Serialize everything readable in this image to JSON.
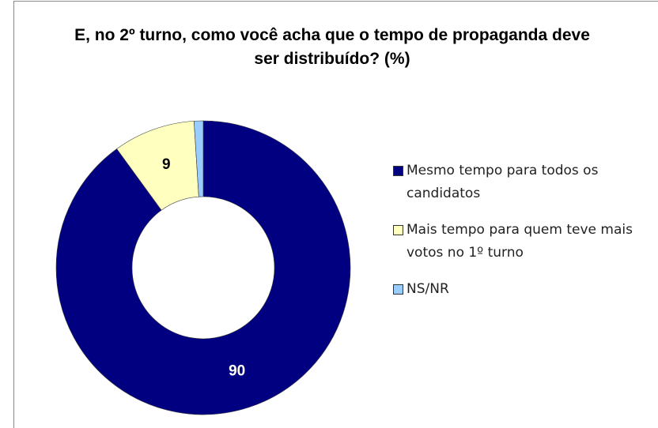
{
  "chart_data": {
    "type": "donut",
    "title": "E, no 2º turno, como você acha que o tempo de propaganda deve ser distribuído? (%)",
    "categories": [
      "Mesmo tempo para todos os candidatos",
      "Mais tempo para quem teve mais votos no 1º turno",
      "NS/NR"
    ],
    "values": [
      90,
      9,
      1
    ],
    "value_labels": [
      "90",
      "9",
      null
    ],
    "colors": [
      "#000080",
      "#ffffc0",
      "#99ccff"
    ],
    "label_colors": [
      "#ffffff",
      "#000000",
      "#000000"
    ],
    "legend": "right"
  }
}
